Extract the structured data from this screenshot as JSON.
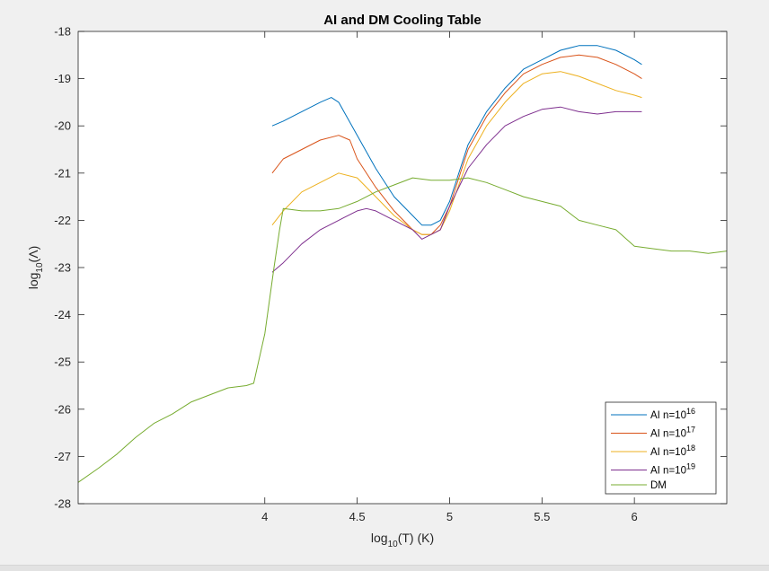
{
  "chart_data": {
    "type": "line",
    "title": "AI and DM Cooling Table",
    "xlabel": {
      "base": "log",
      "sub": "10",
      "rest": "(T) (K)"
    },
    "ylabel": {
      "base": "log",
      "sub": "10",
      "rest": "(Λ)"
    },
    "xlim": [
      2.99,
      6.5
    ],
    "ylim": [
      -28,
      -18
    ],
    "xticks": [
      4,
      4.5,
      5,
      5.5,
      6
    ],
    "xtick_labels": [
      "4",
      "4.5",
      "5",
      "5.5",
      "6"
    ],
    "yticks": [
      -18,
      -19,
      -20,
      -21,
      -22,
      -23,
      -24,
      -25,
      -26,
      -27,
      -28
    ],
    "ytick_labels": [
      "-18",
      "-19",
      "-20",
      "-21",
      "-22",
      "-23",
      "-24",
      "-25",
      "-26",
      "-27",
      "-28"
    ],
    "grid": false,
    "legend_position": "bottom-right",
    "series": [
      {
        "name": {
          "prefix": "AI n=10",
          "exp": "16"
        },
        "color": "#0072bd",
        "x": [
          4.04,
          4.1,
          4.2,
          4.3,
          4.36,
          4.4,
          4.5,
          4.6,
          4.7,
          4.8,
          4.85,
          4.9,
          4.95,
          5.0,
          5.1,
          5.2,
          5.3,
          5.4,
          5.5,
          5.6,
          5.7,
          5.8,
          5.9,
          6.0,
          6.04
        ],
        "y": [
          -20.0,
          -19.9,
          -19.7,
          -19.5,
          -19.4,
          -19.5,
          -20.2,
          -20.9,
          -21.5,
          -21.9,
          -22.1,
          -22.1,
          -22.0,
          -21.6,
          -20.4,
          -19.7,
          -19.2,
          -18.8,
          -18.6,
          -18.4,
          -18.3,
          -18.3,
          -18.4,
          -18.6,
          -18.7
        ]
      },
      {
        "name": {
          "prefix": "AI n=10",
          "exp": "17"
        },
        "color": "#d95319",
        "x": [
          4.04,
          4.1,
          4.2,
          4.3,
          4.4,
          4.46,
          4.5,
          4.6,
          4.7,
          4.8,
          4.85,
          4.9,
          4.95,
          5.0,
          5.1,
          5.2,
          5.3,
          5.4,
          5.5,
          5.6,
          5.7,
          5.8,
          5.9,
          6.0,
          6.04
        ],
        "y": [
          -21.0,
          -20.7,
          -20.5,
          -20.3,
          -20.2,
          -20.3,
          -20.7,
          -21.3,
          -21.8,
          -22.2,
          -22.3,
          -22.3,
          -22.1,
          -21.7,
          -20.5,
          -19.8,
          -19.3,
          -18.9,
          -18.7,
          -18.55,
          -18.5,
          -18.55,
          -18.7,
          -18.9,
          -19.0
        ]
      },
      {
        "name": {
          "prefix": "AI n=10",
          "exp": "18"
        },
        "color": "#edb120",
        "x": [
          4.04,
          4.1,
          4.2,
          4.3,
          4.4,
          4.5,
          4.6,
          4.7,
          4.8,
          4.85,
          4.9,
          4.95,
          5.0,
          5.1,
          5.2,
          5.3,
          5.4,
          5.5,
          5.6,
          5.7,
          5.8,
          5.9,
          6.0,
          6.04
        ],
        "y": [
          -22.1,
          -21.8,
          -21.4,
          -21.2,
          -21.0,
          -21.1,
          -21.5,
          -21.9,
          -22.2,
          -22.3,
          -22.3,
          -22.2,
          -21.8,
          -20.7,
          -20.0,
          -19.5,
          -19.1,
          -18.9,
          -18.85,
          -18.95,
          -19.1,
          -19.25,
          -19.35,
          -19.4
        ]
      },
      {
        "name": {
          "prefix": "AI n=10",
          "exp": "19"
        },
        "color": "#7e2f8e",
        "x": [
          4.04,
          4.1,
          4.2,
          4.3,
          4.4,
          4.5,
          4.55,
          4.6,
          4.7,
          4.8,
          4.85,
          4.9,
          4.95,
          5.0,
          5.1,
          5.2,
          5.3,
          5.4,
          5.5,
          5.6,
          5.7,
          5.8,
          5.9,
          6.0,
          6.04
        ],
        "y": [
          -23.1,
          -22.9,
          -22.5,
          -22.2,
          -22.0,
          -21.8,
          -21.75,
          -21.8,
          -22.0,
          -22.2,
          -22.4,
          -22.3,
          -22.2,
          -21.7,
          -20.9,
          -20.4,
          -20.0,
          -19.8,
          -19.65,
          -19.6,
          -19.7,
          -19.75,
          -19.7,
          -19.7,
          -19.7
        ]
      },
      {
        "name": {
          "prefix": "DM",
          "exp": ""
        },
        "color": "#77ac30",
        "x": [
          2.99,
          3.1,
          3.2,
          3.3,
          3.4,
          3.5,
          3.6,
          3.7,
          3.8,
          3.9,
          3.94,
          4.0,
          4.05,
          4.08,
          4.1,
          4.2,
          4.3,
          4.4,
          4.5,
          4.6,
          4.7,
          4.8,
          4.9,
          5.0,
          5.1,
          5.2,
          5.3,
          5.4,
          5.5,
          5.6,
          5.7,
          5.8,
          5.9,
          6.0,
          6.1,
          6.2,
          6.3,
          6.4,
          6.5
        ],
        "y": [
          -27.55,
          -27.25,
          -26.95,
          -26.6,
          -26.3,
          -26.1,
          -25.85,
          -25.7,
          -25.55,
          -25.5,
          -25.45,
          -24.4,
          -23.0,
          -22.2,
          -21.75,
          -21.8,
          -21.8,
          -21.75,
          -21.6,
          -21.4,
          -21.25,
          -21.1,
          -21.15,
          -21.15,
          -21.1,
          -21.2,
          -21.35,
          -21.5,
          -21.6,
          -21.7,
          -22.0,
          -22.1,
          -22.2,
          -22.55,
          -22.6,
          -22.65,
          -22.65,
          -22.7,
          -22.65
        ]
      }
    ]
  }
}
